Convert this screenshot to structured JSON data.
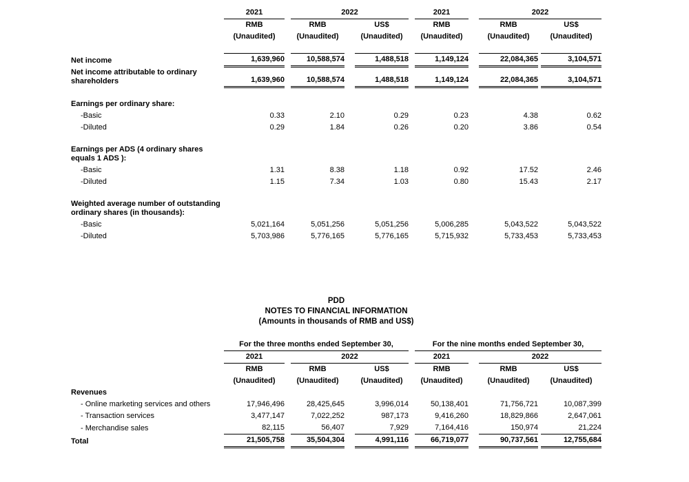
{
  "doc": {
    "title_block": {
      "company": "PDD",
      "subtitle": "NOTES TO FINANCIAL INFORMATION",
      "note": "(Amounts in thousands of RMB and US$)"
    },
    "header": {
      "spanners": [
        "For the three months ended September 30,",
        "For the nine months ended September 30,"
      ],
      "years": [
        "2021",
        "2022",
        "2021",
        "2022"
      ],
      "currencies": [
        "RMB",
        "RMB",
        "US$",
        "RMB",
        "RMB",
        "US$"
      ],
      "unaudited_label": "(Unaudited)"
    },
    "income_table": {
      "rows": [
        {
          "type": "spacer"
        },
        {
          "type": "data",
          "label": "Net income",
          "label_bold": true,
          "value_bold": true,
          "rule_top": true,
          "rule_double": true,
          "values": [
            "1,639,960",
            "10,588,574",
            "1,488,518",
            "1,149,124",
            "22,084,365",
            "3,104,571"
          ]
        },
        {
          "type": "data",
          "label": "Net income attributable to ordinary shareholders",
          "label_bold": true,
          "value_bold": true,
          "rule_top": true,
          "rule_double": true,
          "values": [
            "1,639,960",
            "10,588,574",
            "1,488,518",
            "1,149,124",
            "22,084,365",
            "3,104,571"
          ]
        },
        {
          "type": "spacer"
        },
        {
          "type": "section",
          "label": "Earnings per ordinary share:"
        },
        {
          "type": "data",
          "label": "-Basic",
          "indent": true,
          "values": [
            "0.33",
            "2.10",
            "0.29",
            "0.23",
            "4.38",
            "0.62"
          ]
        },
        {
          "type": "data",
          "label": "-Diluted",
          "indent": true,
          "values": [
            "0.29",
            "1.84",
            "0.26",
            "0.20",
            "3.86",
            "0.54"
          ]
        },
        {
          "type": "spacer"
        },
        {
          "type": "section",
          "label": "Earnings per ADS (4 ordinary shares equals 1 ADS ):"
        },
        {
          "type": "data",
          "label": "-Basic",
          "indent": true,
          "values": [
            "1.31",
            "8.38",
            "1.18",
            "0.92",
            "17.52",
            "2.46"
          ]
        },
        {
          "type": "data",
          "label": "-Diluted",
          "indent": true,
          "values": [
            "1.15",
            "7.34",
            "1.03",
            "0.80",
            "15.43",
            "2.17"
          ]
        },
        {
          "type": "spacer"
        },
        {
          "type": "section",
          "label": "Weighted average number of outstanding ordinary shares (in thousands):"
        },
        {
          "type": "data",
          "label": "-Basic",
          "indent": true,
          "values": [
            "5,021,164",
            "5,051,256",
            "5,051,256",
            "5,006,285",
            "5,043,522",
            "5,043,522"
          ]
        },
        {
          "type": "data",
          "label": "-Diluted",
          "indent": true,
          "values": [
            "5,703,986",
            "5,776,165",
            "5,776,165",
            "5,715,932",
            "5,733,453",
            "5,733,453"
          ]
        }
      ]
    },
    "revenue_table": {
      "rows": [
        {
          "type": "section",
          "label": "Revenues"
        },
        {
          "type": "data",
          "label": "- Online marketing services and others",
          "indent": true,
          "values": [
            "17,946,496",
            "28,425,645",
            "3,996,014",
            "50,138,401",
            "71,756,721",
            "10,087,399"
          ]
        },
        {
          "type": "data",
          "label": "- Transaction services",
          "indent": true,
          "values": [
            "3,477,147",
            "7,022,252",
            "987,173",
            "9,416,260",
            "18,829,866",
            "2,647,061"
          ]
        },
        {
          "type": "data",
          "label": "- Merchandise sales",
          "indent": true,
          "rule_bottom": true,
          "values": [
            "82,115",
            "56,407",
            "7,929",
            "7,164,416",
            "150,974",
            "21,224"
          ]
        },
        {
          "type": "data",
          "label": "Total",
          "label_bold": true,
          "value_bold": true,
          "rule_double": true,
          "values": [
            "21,505,758",
            "35,504,304",
            "4,991,116",
            "66,719,077",
            "90,737,561",
            "12,755,684"
          ]
        }
      ]
    }
  }
}
